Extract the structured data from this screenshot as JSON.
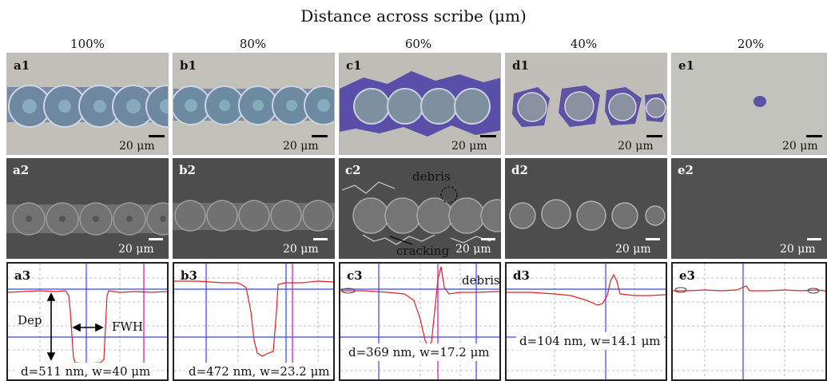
{
  "figure": {
    "title": "Distance across scribe (μm)",
    "columns": [
      "100%",
      "80%",
      "60%",
      "40%",
      "20%"
    ],
    "optical_labels": [
      "a1",
      "b1",
      "c1",
      "d1",
      "e1"
    ],
    "sem_labels": [
      "a2",
      "b2",
      "c2",
      "d2",
      "e2"
    ],
    "profile_labels": [
      "a3",
      "b3",
      "c3",
      "d3",
      "e3"
    ],
    "scale_bar_text": "20 μm",
    "measurements": [
      "d=511 nm, w=40 μm",
      "d=472 nm, w=23.2 μm",
      "d=369 nm, w=17.2 μm",
      "d=104 nm, w=14.1 μm"
    ],
    "annotations": {
      "debris_sem": "debris",
      "cracking": "cracking",
      "debris_profile": "debris",
      "depth": "Dep",
      "fwhm": "FWH"
    }
  }
}
